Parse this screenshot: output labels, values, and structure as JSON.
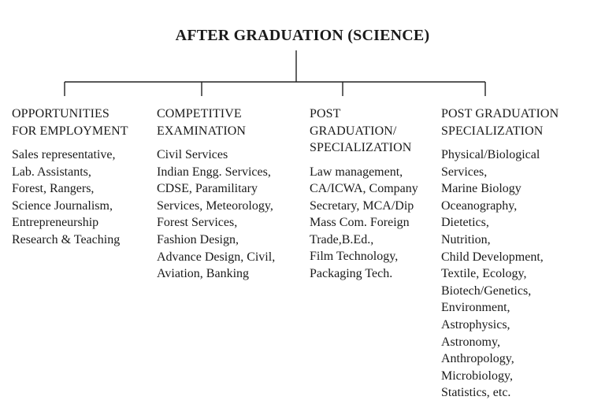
{
  "title": "AFTER GRADUATION (SCIENCE)",
  "columns": [
    {
      "heading": [
        "OPPORTUNITIES",
        "FOR EMPLOYMENT"
      ],
      "items": [
        "Sales representative,",
        "Lab. Assistants,",
        "Forest, Rangers,",
        "Science Journalism,",
        "Entrepreneurship",
        "Research & Teaching"
      ]
    },
    {
      "heading": [
        "COMPETITIVE",
        "EXAMINATION"
      ],
      "items": [
        "Civil Services",
        "Indian Engg. Services,",
        "CDSE, Paramilitary",
        "Services, Meteorology,",
        "Forest Services,",
        "Fashion Design,",
        "Advance Design, Civil,",
        "Aviation, Banking"
      ]
    },
    {
      "heading": [
        "POST",
        "GRADUATION/",
        "SPECIALIZATION"
      ],
      "items": [
        "Law management,",
        "CA/ICWA, Company",
        "Secretary, MCA/Dip",
        "Mass Com. Foreign",
        "Trade,B.Ed.,",
        "Film Technology,",
        "Packaging Tech."
      ]
    },
    {
      "heading": [
        "POST GRADUATION",
        "SPECIALIZATION"
      ],
      "items": [
        "Physical/Biological",
        "Services,",
        "Marine Biology",
        "Oceanography,",
        "Dietetics,",
        "Nutrition,",
        "Child Development,",
        "Textile, Ecology,",
        "Biotech/Genetics,",
        "Environment,",
        "Astrophysics,",
        "Astronomy,",
        "Anthropology,",
        "Microbiology,",
        "Statistics, etc."
      ]
    }
  ]
}
